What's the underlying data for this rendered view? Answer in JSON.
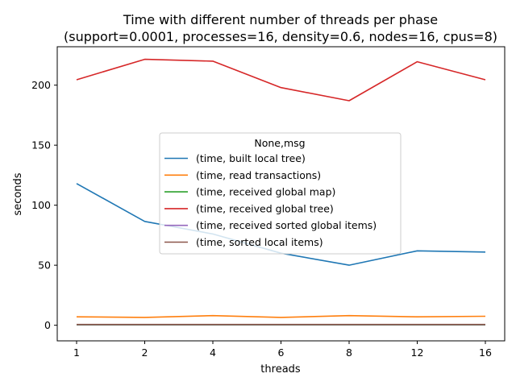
{
  "chart_data": {
    "type": "line",
    "title": "Time with different number of threads per phase",
    "subtitle": "(support=0.0001, processes=16, density=0.6, nodes=16, cpus=8)",
    "xlabel": "threads",
    "ylabel": "seconds",
    "categories": [
      "1",
      "2",
      "4",
      "6",
      "8",
      "12",
      "16"
    ],
    "ylim": [
      -13,
      232
    ],
    "yticks": [
      0,
      50,
      100,
      150,
      200
    ],
    "legend": {
      "title": "None,msg",
      "position": "center"
    },
    "series": [
      {
        "name": "(time, built local tree)",
        "color": "#1f77b4",
        "values": [
          118,
          86.5,
          76,
          60,
          50,
          62,
          61
        ]
      },
      {
        "name": "(time, read transactions)",
        "color": "#ff7f0e",
        "values": [
          7,
          6.5,
          8,
          6.5,
          8,
          7,
          7.5
        ]
      },
      {
        "name": "(time, received global map)",
        "color": "#2ca02c",
        "values": [
          0.3,
          0.3,
          0.3,
          0.3,
          0.3,
          0.3,
          0.3
        ]
      },
      {
        "name": "(time, received global tree)",
        "color": "#d62728",
        "values": [
          204.5,
          221.5,
          220,
          198,
          187,
          219.5,
          204.5
        ]
      },
      {
        "name": "(time, received sorted global items)",
        "color": "#9467bd",
        "values": [
          0.5,
          0.5,
          0.5,
          0.5,
          0.5,
          0.5,
          0.5
        ]
      },
      {
        "name": "(time, sorted local items)",
        "color": "#8c564b",
        "values": [
          0.6,
          0.6,
          0.6,
          0.6,
          0.6,
          0.6,
          0.6
        ]
      }
    ]
  }
}
